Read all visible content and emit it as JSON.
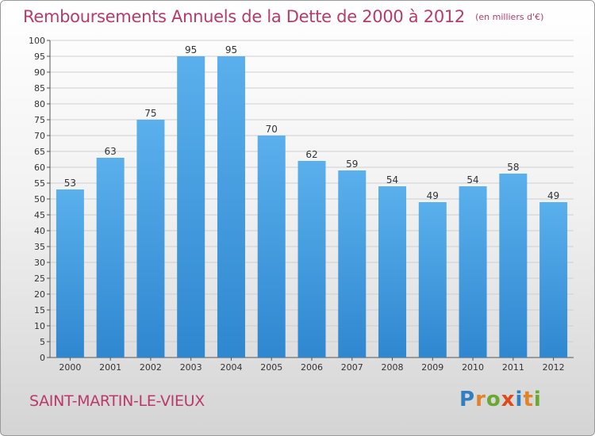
{
  "chart_data": {
    "type": "bar",
    "title": "Remboursements Annuels de la Dette de 2000 à 2012",
    "subtitle": "(en milliers d'€)",
    "categories": [
      "2000",
      "2001",
      "2002",
      "2003",
      "2004",
      "2005",
      "2006",
      "2007",
      "2008",
      "2009",
      "2010",
      "2011",
      "2012"
    ],
    "values": [
      53,
      63,
      75,
      95,
      95,
      70,
      62,
      59,
      54,
      49,
      54,
      58,
      49
    ],
    "ylim": [
      0,
      100
    ],
    "yticks": [
      0,
      5,
      10,
      15,
      20,
      25,
      30,
      35,
      40,
      45,
      50,
      55,
      60,
      65,
      70,
      75,
      80,
      85,
      90,
      95,
      100
    ],
    "grid": true,
    "bar_color": "#2f87d0",
    "bar_color_light": "#5ab0ec",
    "title_color": "#b93a6a"
  },
  "place": "SAINT-MARTIN-LE-VIEUX",
  "brand": {
    "letters": [
      "P",
      "r",
      "o",
      "x",
      "i",
      "t",
      "i"
    ]
  }
}
